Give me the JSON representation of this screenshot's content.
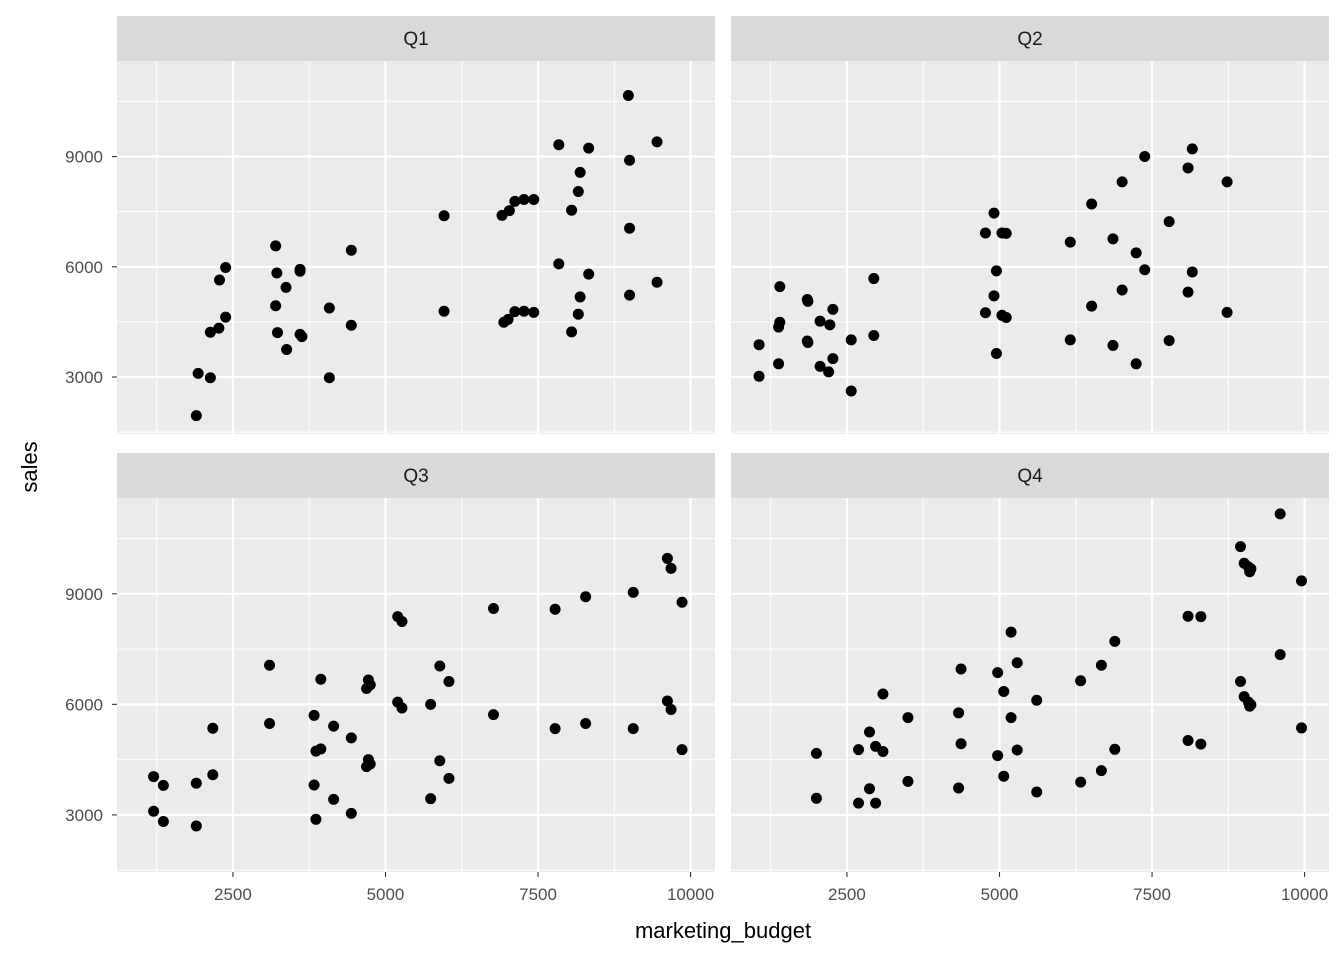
{
  "chart_data": {
    "type": "scatter",
    "facet_by": "quarter",
    "xlabel": "marketing_budget",
    "ylabel": "sales",
    "xticks": [
      2500,
      5000,
      7500,
      10000
    ],
    "yticks": [
      3000,
      6000,
      9000
    ],
    "xlim": [
      600,
      10400
    ],
    "ylim": [
      1450,
      11600
    ],
    "grid": true,
    "colors": {
      "panel": "#ebebeb",
      "strip": "#d9d9d9",
      "point": "#000000",
      "grid": "#ffffff"
    },
    "panels": [
      {
        "label": "Q1",
        "points": [
          [
            1900,
            1950
          ],
          [
            1930,
            3100
          ],
          [
            2130,
            2980
          ],
          [
            2130,
            4220
          ],
          [
            2270,
            4330
          ],
          [
            2280,
            5640
          ],
          [
            2380,
            4630
          ],
          [
            2380,
            5980
          ],
          [
            3200,
            6570
          ],
          [
            3200,
            4940
          ],
          [
            3220,
            5830
          ],
          [
            3230,
            4210
          ],
          [
            3370,
            5440
          ],
          [
            3380,
            3750
          ],
          [
            3600,
            5930
          ],
          [
            3600,
            5880
          ],
          [
            3600,
            4160
          ],
          [
            3630,
            4100
          ],
          [
            4080,
            2980
          ],
          [
            4080,
            4880
          ],
          [
            4440,
            6450
          ],
          [
            4440,
            4410
          ],
          [
            5960,
            7390
          ],
          [
            5960,
            4790
          ],
          [
            6910,
            7400
          ],
          [
            6940,
            4490
          ],
          [
            7010,
            4570
          ],
          [
            7030,
            7530
          ],
          [
            7120,
            7780
          ],
          [
            7120,
            4780
          ],
          [
            7270,
            7830
          ],
          [
            7270,
            4790
          ],
          [
            7430,
            7830
          ],
          [
            7430,
            4760
          ],
          [
            7840,
            9320
          ],
          [
            7840,
            6080
          ],
          [
            8050,
            7540
          ],
          [
            8050,
            4230
          ],
          [
            8160,
            8050
          ],
          [
            8160,
            4710
          ],
          [
            8190,
            8570
          ],
          [
            8190,
            5180
          ],
          [
            8330,
            9230
          ],
          [
            8330,
            5800
          ],
          [
            8980,
            10660
          ],
          [
            9000,
            7050
          ],
          [
            9000,
            8900
          ],
          [
            9000,
            5230
          ],
          [
            9450,
            9400
          ],
          [
            9450,
            5580
          ]
        ]
      },
      {
        "label": "Q2",
        "points": [
          [
            1060,
            3880
          ],
          [
            1060,
            3020
          ],
          [
            1380,
            4360
          ],
          [
            1380,
            3360
          ],
          [
            1400,
            4490
          ],
          [
            1400,
            5460
          ],
          [
            1850,
            5110
          ],
          [
            1850,
            3980
          ],
          [
            1860,
            5060
          ],
          [
            1860,
            3940
          ],
          [
            2060,
            4520
          ],
          [
            2060,
            3290
          ],
          [
            2200,
            3140
          ],
          [
            2220,
            4420
          ],
          [
            2270,
            4840
          ],
          [
            2270,
            3500
          ],
          [
            2570,
            4010
          ],
          [
            2570,
            2620
          ],
          [
            2940,
            5680
          ],
          [
            2940,
            4130
          ],
          [
            4770,
            6920
          ],
          [
            4770,
            4750
          ],
          [
            4910,
            7460
          ],
          [
            4910,
            5210
          ],
          [
            4950,
            5890
          ],
          [
            4950,
            3640
          ],
          [
            5040,
            6920
          ],
          [
            5040,
            4680
          ],
          [
            5110,
            6910
          ],
          [
            5110,
            4620
          ],
          [
            6160,
            6670
          ],
          [
            6160,
            4010
          ],
          [
            6510,
            7710
          ],
          [
            6510,
            4930
          ],
          [
            6860,
            6760
          ],
          [
            6860,
            3860
          ],
          [
            7010,
            8310
          ],
          [
            7010,
            5370
          ],
          [
            7240,
            6380
          ],
          [
            7240,
            3360
          ],
          [
            7380,
            9000
          ],
          [
            7380,
            5920
          ],
          [
            7780,
            7230
          ],
          [
            7780,
            3990
          ],
          [
            8090,
            8690
          ],
          [
            8090,
            5310
          ],
          [
            8160,
            9210
          ],
          [
            8160,
            5860
          ],
          [
            8730,
            8310
          ],
          [
            8730,
            4760
          ]
        ]
      },
      {
        "label": "Q3",
        "points": [
          [
            1200,
            3100
          ],
          [
            1200,
            4040
          ],
          [
            1360,
            2820
          ],
          [
            1360,
            3800
          ],
          [
            1900,
            2700
          ],
          [
            1900,
            3860
          ],
          [
            2170,
            4090
          ],
          [
            2170,
            5350
          ],
          [
            3100,
            7060
          ],
          [
            3100,
            5480
          ],
          [
            3830,
            5700
          ],
          [
            3830,
            3810
          ],
          [
            3860,
            4730
          ],
          [
            3860,
            2880
          ],
          [
            3940,
            6680
          ],
          [
            3940,
            4790
          ],
          [
            4150,
            5410
          ],
          [
            4150,
            3420
          ],
          [
            4440,
            5090
          ],
          [
            4440,
            3040
          ],
          [
            4690,
            6430
          ],
          [
            4690,
            4310
          ],
          [
            4720,
            6660
          ],
          [
            4720,
            4500
          ],
          [
            4750,
            6530
          ],
          [
            4750,
            4380
          ],
          [
            5200,
            8380
          ],
          [
            5200,
            6060
          ],
          [
            5270,
            8250
          ],
          [
            5270,
            5900
          ],
          [
            5740,
            6000
          ],
          [
            5740,
            3440
          ],
          [
            5890,
            7040
          ],
          [
            5890,
            4470
          ],
          [
            6040,
            6620
          ],
          [
            6040,
            3990
          ],
          [
            6770,
            8600
          ],
          [
            6770,
            5720
          ],
          [
            7780,
            8580
          ],
          [
            7780,
            5340
          ],
          [
            8280,
            8920
          ],
          [
            8280,
            5480
          ],
          [
            9060,
            9040
          ],
          [
            9060,
            5340
          ],
          [
            9620,
            9960
          ],
          [
            9620,
            6090
          ],
          [
            9680,
            9690
          ],
          [
            9680,
            5860
          ],
          [
            9860,
            8770
          ],
          [
            9860,
            4770
          ]
        ]
      },
      {
        "label": "Q4",
        "points": [
          [
            2000,
            4670
          ],
          [
            2000,
            3450
          ],
          [
            2690,
            4770
          ],
          [
            2690,
            3320
          ],
          [
            2870,
            5250
          ],
          [
            2870,
            3710
          ],
          [
            2970,
            4860
          ],
          [
            2970,
            3320
          ],
          [
            3090,
            4720
          ],
          [
            3090,
            6280
          ],
          [
            3500,
            5640
          ],
          [
            3500,
            3910
          ],
          [
            4330,
            5770
          ],
          [
            4330,
            3730
          ],
          [
            4370,
            6960
          ],
          [
            4370,
            4930
          ],
          [
            4970,
            6860
          ],
          [
            4970,
            4610
          ],
          [
            5070,
            6350
          ],
          [
            5070,
            4050
          ],
          [
            5190,
            7960
          ],
          [
            5190,
            5640
          ],
          [
            5290,
            7130
          ],
          [
            5290,
            4760
          ],
          [
            5610,
            6110
          ],
          [
            5610,
            3620
          ],
          [
            6330,
            6640
          ],
          [
            6330,
            3890
          ],
          [
            6670,
            7060
          ],
          [
            6670,
            4200
          ],
          [
            6890,
            7710
          ],
          [
            6890,
            4780
          ],
          [
            8090,
            8390
          ],
          [
            8090,
            5020
          ],
          [
            8300,
            8380
          ],
          [
            8300,
            4920
          ],
          [
            8950,
            10280
          ],
          [
            8950,
            6620
          ],
          [
            9010,
            9830
          ],
          [
            9010,
            6210
          ],
          [
            9080,
            9730
          ],
          [
            9080,
            6060
          ],
          [
            9100,
            9600
          ],
          [
            9100,
            5950
          ],
          [
            9120,
            9680
          ],
          [
            9120,
            5990
          ],
          [
            9600,
            11170
          ],
          [
            9600,
            7350
          ],
          [
            9950,
            9350
          ],
          [
            9950,
            5360
          ]
        ]
      }
    ]
  }
}
